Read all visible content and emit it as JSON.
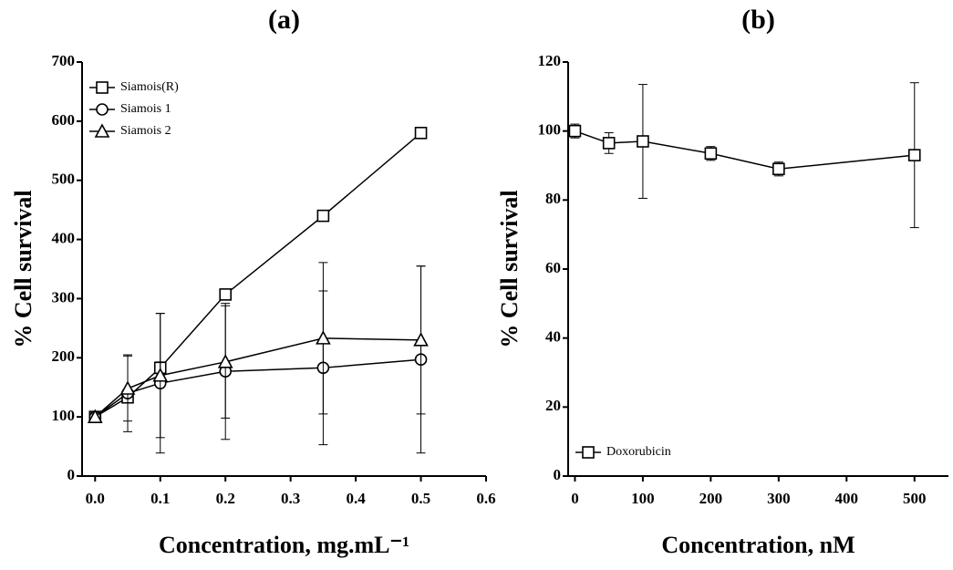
{
  "chart_data": [
    {
      "type": "line",
      "title": "(a)",
      "x_label": "Concentration, mg.mL⁻¹",
      "y_label": "% Cell survival",
      "xlim": [
        -0.02,
        0.6
      ],
      "xticks": [
        {
          "value": 0,
          "label": "0.0"
        },
        0.1,
        0.2,
        0.3,
        0.4,
        0.5,
        0.6
      ],
      "ylim": [
        0,
        700
      ],
      "yticks": [
        0,
        100,
        200,
        300,
        400,
        500,
        600,
        700
      ],
      "legend": "top-left",
      "series": [
        {
          "name": "Siamois(R)",
          "marker": "square",
          "color": "#000000",
          "x": [
            0,
            0.05,
            0.1,
            0.2,
            0.35,
            0.5
          ],
          "values": [
            100,
            133,
            183,
            307,
            440,
            580
          ],
          "errors": [
            5,
            8,
            10,
            8,
            8,
            8
          ]
        },
        {
          "name": "Siamois 1",
          "marker": "circle",
          "color": "#000000",
          "x": [
            0,
            0.05,
            0.1,
            0.2,
            0.35,
            0.5
          ],
          "values": [
            100,
            140,
            157,
            177,
            183,
            197
          ],
          "errors": [
            5,
            65,
            118,
            115,
            130,
            158
          ]
        },
        {
          "name": "Siamois 2",
          "marker": "triangle",
          "color": "#000000",
          "x": [
            0,
            0.05,
            0.1,
            0.2,
            0.35,
            0.5
          ],
          "values": [
            100,
            148,
            170,
            193,
            233,
            230
          ],
          "errors": [
            5,
            55,
            105,
            95,
            128,
            125
          ]
        }
      ]
    },
    {
      "type": "line",
      "title": "(b)",
      "x_label": "Concentration, nM",
      "y_label": "% Cell survival",
      "xlim": [
        -10,
        550
      ],
      "xticks": [
        0,
        100,
        200,
        300,
        400,
        500
      ],
      "ylim": [
        0,
        120
      ],
      "yticks": [
        0,
        20,
        40,
        60,
        80,
        100,
        120
      ],
      "legend": "bottom-left",
      "series": [
        {
          "name": "Doxorubicin",
          "marker": "square",
          "color": "#000000",
          "x": [
            0,
            50,
            100,
            200,
            300,
            500
          ],
          "values": [
            100,
            96.5,
            97,
            93.5,
            89,
            93
          ],
          "errors": [
            2,
            3,
            16.5,
            2,
            2,
            21
          ]
        }
      ]
    }
  ]
}
